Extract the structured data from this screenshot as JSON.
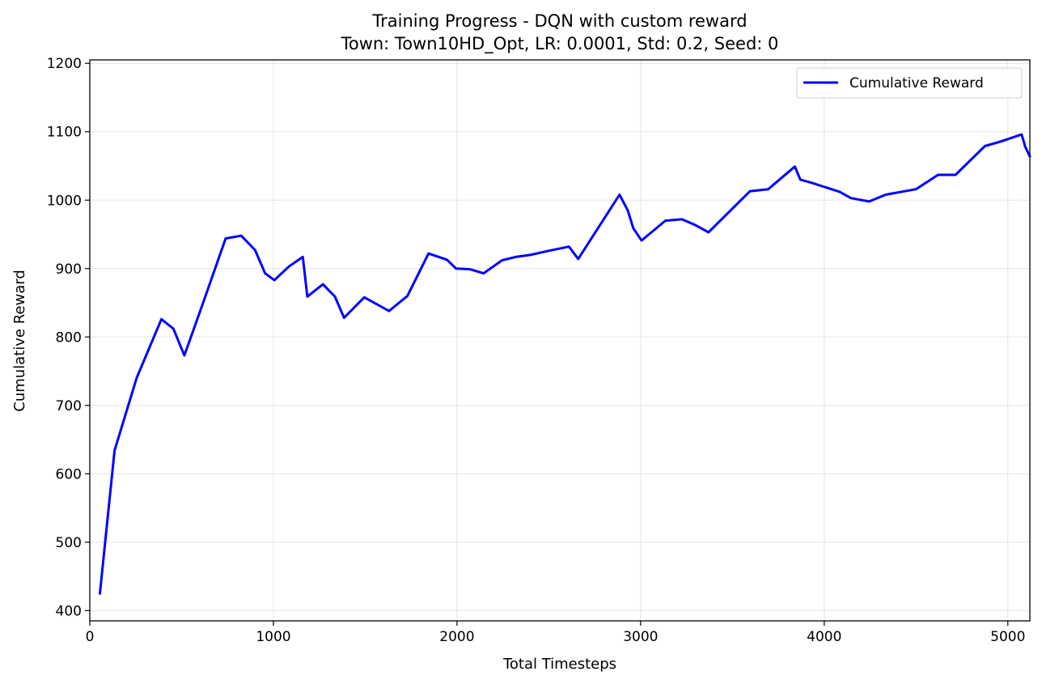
{
  "chart_data": {
    "type": "line",
    "title": "Training Progress - DQN with custom reward",
    "subtitle": "Town: Town10HD_Opt, LR: 0.0001, Std: 0.2, Seed: 0",
    "xlabel": "Total Timesteps",
    "ylabel": "Cumulative Reward",
    "xlim": [
      0,
      5120
    ],
    "ylim": [
      385,
      1205
    ],
    "x_ticks": [
      0,
      1000,
      2000,
      3000,
      4000,
      5000
    ],
    "y_ticks": [
      400,
      500,
      600,
      700,
      800,
      900,
      1000,
      1100,
      1200
    ],
    "grid": true,
    "legend_position": "top-right",
    "series": [
      {
        "name": "Cumulative Reward",
        "color": "#0000ff",
        "x": [
          55,
          135,
          255,
          390,
          455,
          515,
          620,
          740,
          825,
          900,
          955,
          1005,
          1085,
          1160,
          1185,
          1270,
          1335,
          1385,
          1495,
          1630,
          1730,
          1845,
          1945,
          1995,
          2070,
          2145,
          2245,
          2320,
          2400,
          2500,
          2610,
          2660,
          2885,
          2930,
          2960,
          3005,
          3135,
          3225,
          3295,
          3370,
          3595,
          3695,
          3840,
          3870,
          3935,
          4085,
          4145,
          4245,
          4335,
          4500,
          4620,
          4715,
          4875,
          4965,
          5075,
          5095,
          5120
        ],
        "y": [
          425,
          634,
          740,
          826,
          812,
          773,
          852,
          944,
          948,
          927,
          893,
          883,
          903,
          917,
          859,
          877,
          859,
          828,
          858,
          838,
          860,
          922,
          913,
          900,
          899,
          893,
          912,
          917,
          920,
          926,
          932,
          914,
          1008,
          985,
          959,
          941,
          970,
          972,
          964,
          953,
          1013,
          1016,
          1049,
          1030,
          1025,
          1012,
          1003,
          998,
          1008,
          1016,
          1037,
          1037,
          1079,
          1086,
          1096,
          1078,
          1064
        ]
      }
    ]
  }
}
